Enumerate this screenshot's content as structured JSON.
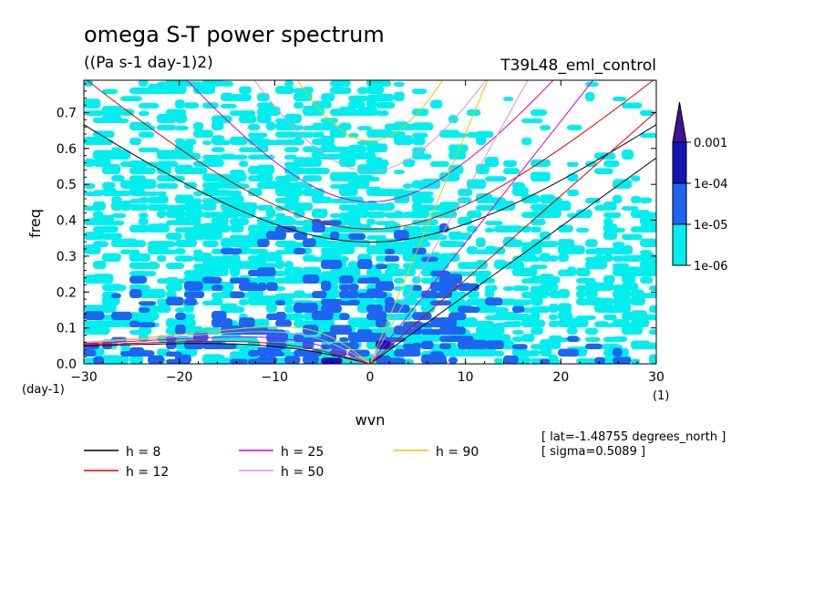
{
  "chart_data": {
    "type": "heatmap",
    "title": "omega S-T power spectrum",
    "subtitle": "((Pa s-1 day-1)2)",
    "run_label": "T39L48_eml_control",
    "xlabel": "wvn",
    "ylabel": "freq",
    "x_unit": "(1)",
    "y_unit": "(day-1)",
    "xlim": [
      -30,
      30
    ],
    "ylim": [
      0,
      0.79
    ],
    "xticks": [
      -30,
      -20,
      -10,
      0,
      10,
      20,
      30
    ],
    "yticks": [
      0.0,
      0.1,
      0.2,
      0.3,
      0.4,
      0.5,
      0.6,
      0.7
    ],
    "xtick_labels": [
      "−30",
      "−20",
      "−10",
      "0",
      "10",
      "20",
      "30"
    ],
    "ytick_labels": [
      "0.0",
      "0.1",
      "0.2",
      "0.3",
      "0.4",
      "0.5",
      "0.6",
      "0.7"
    ],
    "colorbar": {
      "levels": [
        "1e-06",
        "1e-05",
        "1e-04",
        "0.001"
      ],
      "colors": [
        "#00eeee",
        "#1e64f0",
        "#1414b4",
        "#4b0082"
      ],
      "triangle_color": "#3c1496"
    },
    "contour_bands": [
      {
        "level": "1e-06",
        "color": "#00eeee",
        "ymin": 0.0,
        "ymax": 0.79,
        "density": 0.55
      },
      {
        "level": "1e-05",
        "color": "#1e64f0",
        "ymin": 0.0,
        "ymax": 0.4,
        "density": 0.35
      },
      {
        "level": "1e-04",
        "color": "#1414b4",
        "ymin": 0.0,
        "ymax": 0.08,
        "density": 0.05
      }
    ],
    "dispersion_curves": [
      {
        "h": "8",
        "label": "h =  8",
        "color": "#000000"
      },
      {
        "h": "12",
        "label": "h = 12",
        "color": "#e00000"
      },
      {
        "h": "25",
        "label": "h = 25",
        "color": "#d200c8"
      },
      {
        "h": "50",
        "label": "h = 50",
        "color": "#e090e0"
      },
      {
        "h": "90",
        "label": "h = 90",
        "color": "#e6c800"
      }
    ],
    "info": [
      "[ lat=-1.48755 degrees_north ]",
      "[ sigma=0.5089 ]"
    ]
  }
}
